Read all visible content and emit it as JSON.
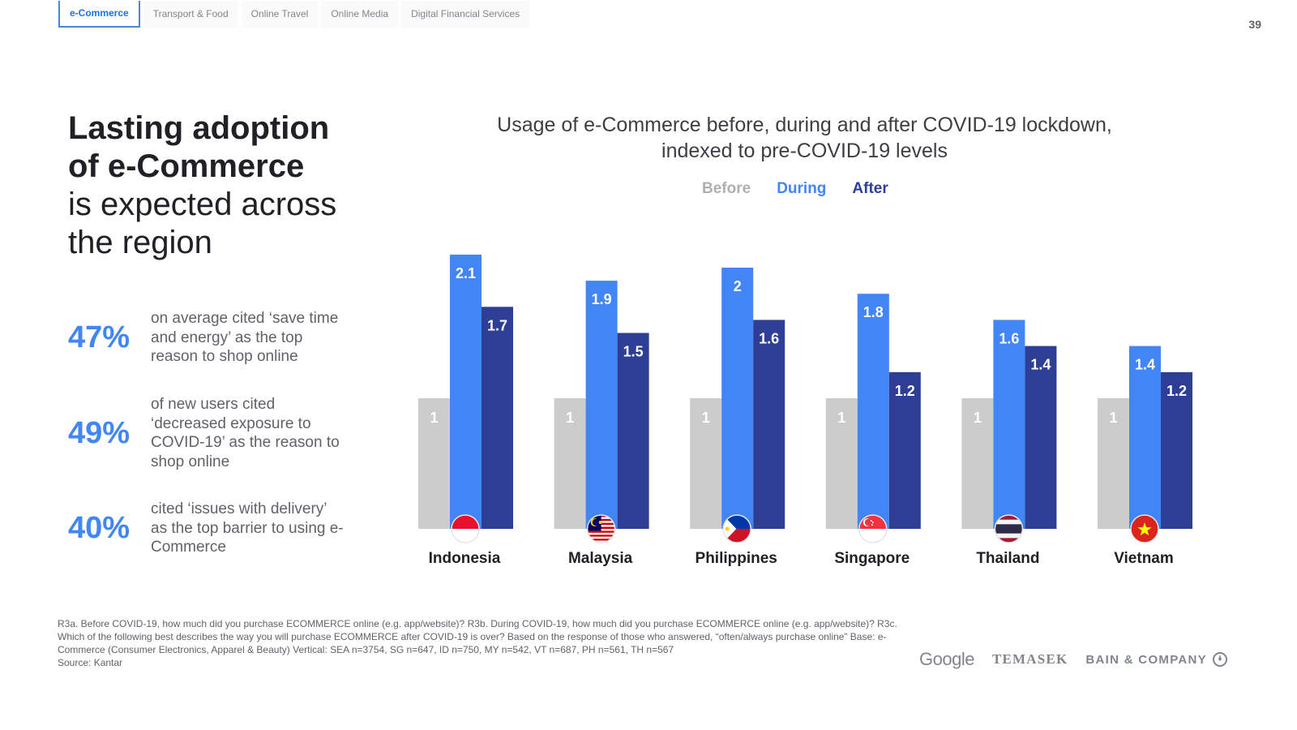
{
  "tabs": [
    {
      "label": "e-Commerce",
      "active": true
    },
    {
      "label": "Transport & Food",
      "active": false
    },
    {
      "label": "Online Travel",
      "active": false
    },
    {
      "label": "Online Media",
      "active": false
    },
    {
      "label": "Digital Financial Services",
      "active": false
    }
  ],
  "page_number": "39",
  "headline": {
    "bold_line1": "Lasting adoption",
    "bold_line2": "of e-Commerce",
    "light_line1": "is expected across",
    "light_line2": "the region"
  },
  "stats": [
    {
      "value": "47%",
      "text": "on average cited ‘save time and energy’ as the top reason to shop online"
    },
    {
      "value": "49%",
      "text": "of new users cited ‘decreased exposure to COVID-19’ as the reason to shop online"
    },
    {
      "value": "40%",
      "text": "cited ‘issues with delivery’ as the top barrier to using e-Commerce"
    }
  ],
  "colors": {
    "before": "#cccccc",
    "during": "#4285f4",
    "after": "#2d3e94",
    "accent": "#4285f4"
  },
  "chart_data": {
    "type": "bar",
    "title": "Usage of e-Commerce before, during and after COVID-19 lockdown, indexed to pre-COVID-19 levels",
    "title_line1": "Usage of e-Commerce before, during and after COVID-19 lockdown,",
    "title_line2": "indexed to pre-COVID-19 levels",
    "categories": [
      "Indonesia",
      "Malaysia",
      "Philippines",
      "Singapore",
      "Thailand",
      "Vietnam"
    ],
    "series": [
      {
        "name": "Before",
        "values": [
          1,
          1,
          1,
          1,
          1,
          1
        ]
      },
      {
        "name": "During",
        "values": [
          2.1,
          1.9,
          2,
          1.8,
          1.6,
          1.4
        ]
      },
      {
        "name": "After",
        "values": [
          1.7,
          1.5,
          1.6,
          1.2,
          1.4,
          1.2
        ]
      }
    ],
    "legend_placement": "top-center",
    "ylim": [
      0,
      2.1
    ],
    "grid": false,
    "flags": [
      "indonesia-flag-icon",
      "malaysia-flag-icon",
      "philippines-flag-icon",
      "singapore-flag-icon",
      "thailand-flag-icon",
      "vietnam-flag-icon"
    ]
  },
  "notes": {
    "question": "R3a. Before COVID-19, how much did you purchase ECOMMERCE online (e.g. app/website)? R3b. During COVID-19,  how much did you purchase ECOMMERCE online (e.g. app/website)? R3c. Which of the following best describes the way you will purchase ECOMMERCE after COVID-19 is over? Based on the response of those who answered, “often/always purchase online” Base: e-Commerce (Consumer Electronics, Apparel & Beauty) Vertical: SEA n=3754, SG n=647, ID n=750, MY n=542, VT n=687, PH n=561, TH n=567",
    "source": "Source: Kantar"
  },
  "logos": {
    "google": "Google",
    "temasek": "TEMASEK",
    "bain": "BAIN & COMPANY"
  }
}
